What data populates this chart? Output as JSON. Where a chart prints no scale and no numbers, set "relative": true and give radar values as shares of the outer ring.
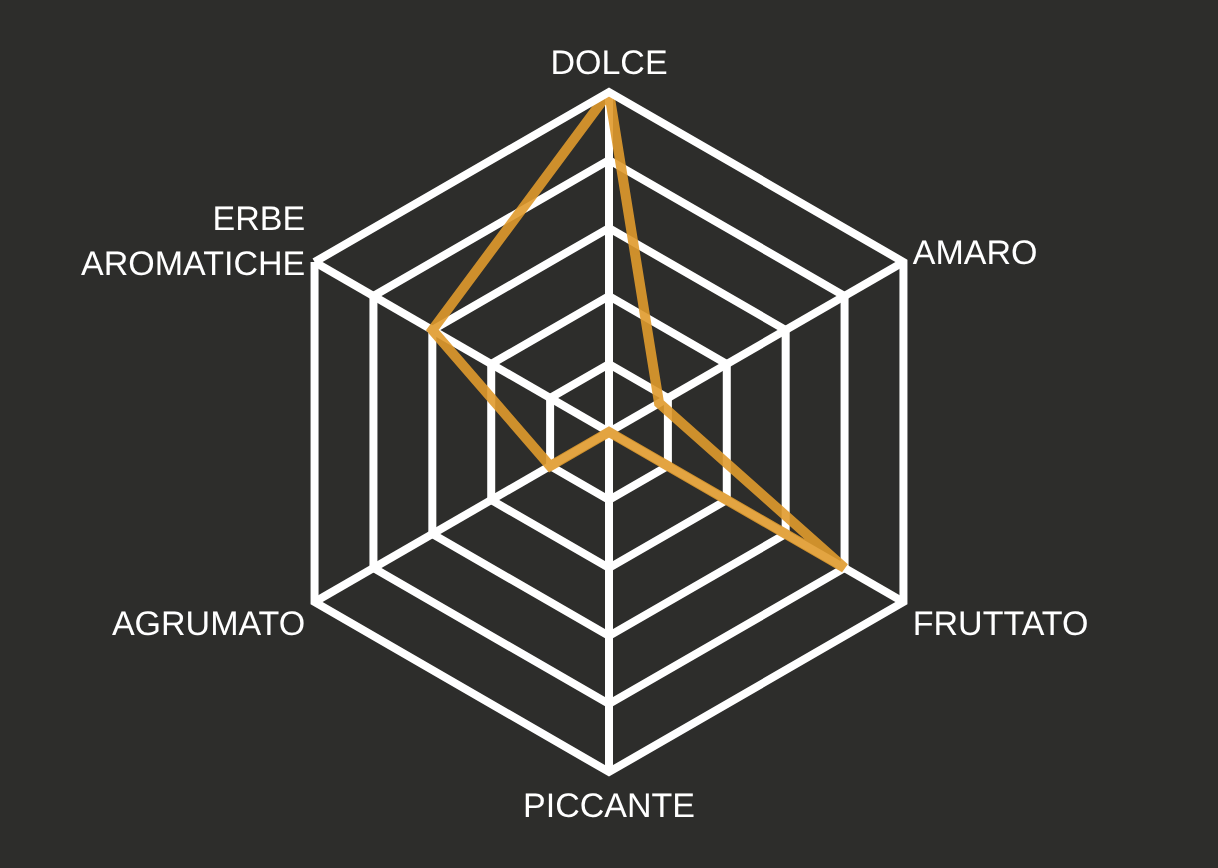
{
  "chart_data": {
    "type": "radar",
    "relative": true,
    "categories": [
      "DOLCE",
      "AMARO",
      "FRUTTATO",
      "PICCANTE",
      "AGRUMATO",
      "ERBE\nAROMATICHE"
    ],
    "series": [
      {
        "color": "#e09b2d",
        "values": [
          1.0,
          0.17,
          0.8,
          0.0,
          0.2,
          0.6
        ]
      }
    ],
    "grid": true,
    "marker": "none",
    "line_style": "solid"
  }
}
